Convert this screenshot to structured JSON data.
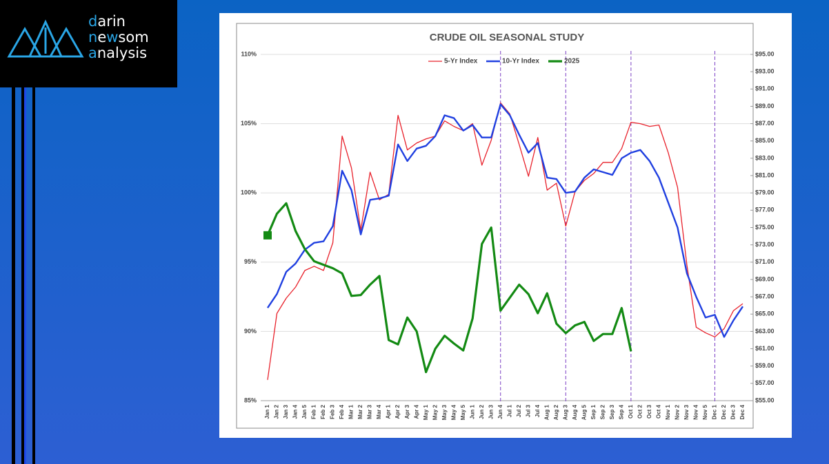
{
  "logo": {
    "lines": [
      [
        "d",
        "arin"
      ],
      [
        "n",
        "e",
        "w",
        "som"
      ],
      [
        "a",
        "nalysis"
      ]
    ]
  },
  "chart_data": {
    "type": "line",
    "title": "CRUDE OIL SEASONAL STUDY",
    "categories": [
      "Jan 1",
      "Jan 2",
      "Jan 3",
      "Jan 4",
      "Jan 5",
      "Feb 1",
      "Feb 2",
      "Feb 3",
      "Feb 4",
      "Mar 1",
      "Mar 2",
      "Mar 3",
      "Mar 4",
      "Apr 1",
      "Apr 2",
      "Apr 3",
      "Apr 4",
      "May 1",
      "May 2",
      "May 3",
      "May 4",
      "May 5",
      "Jun 1",
      "Jun 2",
      "Jun 3",
      "Jun 4",
      "Jul 1",
      "Jul 2",
      "Jul 3",
      "Jul 4",
      "Aug 1",
      "Aug 2",
      "Aug 3",
      "Aug 4",
      "Aug 5",
      "Sep 1",
      "Sep 2",
      "Sep 3",
      "Sep 4",
      "Oct 1",
      "Oct 2",
      "Oct 3",
      "Oct 4",
      "Nov 1",
      "Nov 2",
      "Nov 3",
      "Nov 4",
      "Nov 5",
      "Dec 1",
      "Dec 2",
      "Dec 3",
      "Dec 4"
    ],
    "series": [
      {
        "name": "5-Yr Index",
        "color": "#e8202a",
        "width": 1.3,
        "values": [
          86.5,
          91.3,
          92.4,
          93.2,
          94.4,
          94.7,
          94.4,
          96.4,
          104.1,
          101.8,
          97.3,
          101.5,
          99.5,
          99.9,
          105.6,
          103.1,
          103.6,
          103.9,
          104.1,
          105.2,
          104.8,
          104.5,
          105.0,
          102.0,
          103.8,
          106.5,
          105.7,
          103.5,
          101.2,
          104.0,
          100.2,
          100.7,
          97.6,
          100.1,
          100.9,
          101.4,
          102.2,
          102.2,
          103.2,
          105.1,
          105.0,
          104.8,
          104.9,
          102.9,
          100.4,
          94.8,
          90.3,
          89.9,
          89.6,
          90.2,
          91.5,
          92.0
        ]
      },
      {
        "name": "10-Yr Index",
        "color": "#1f3fe0",
        "width": 2.4,
        "values": [
          91.7,
          92.7,
          94.3,
          94.9,
          95.9,
          96.4,
          96.5,
          97.6,
          101.6,
          100.2,
          97.0,
          99.5,
          99.6,
          99.8,
          103.5,
          102.3,
          103.2,
          103.4,
          104.1,
          105.6,
          105.4,
          104.5,
          104.9,
          104.0,
          104.0,
          106.4,
          105.6,
          104.2,
          102.9,
          103.6,
          101.1,
          101.0,
          100.0,
          100.1,
          101.1,
          101.7,
          101.5,
          101.3,
          102.5,
          102.9,
          103.1,
          102.3,
          101.1,
          99.3,
          97.5,
          94.2,
          92.5,
          91.0,
          91.2,
          89.6,
          90.8,
          91.8
        ]
      },
      {
        "name": "2025",
        "color": "#138a13",
        "width": 3.2,
        "axis": "y2",
        "values": [
          74.1,
          76.6,
          77.8,
          74.6,
          72.5,
          71.1,
          70.7,
          70.3,
          69.7,
          67.1,
          67.2,
          68.4,
          69.4,
          62.0,
          61.5,
          64.6,
          63.0,
          58.3,
          61.0,
          62.5,
          61.6,
          60.8,
          64.5,
          73.1,
          75.0,
          65.4,
          66.9,
          68.4,
          67.3,
          65.1,
          67.4,
          63.9,
          62.8,
          63.7,
          64.1,
          61.9,
          62.7,
          62.7,
          65.7,
          60.7,
          null,
          null,
          null,
          null,
          null,
          null,
          null,
          null,
          null,
          null,
          null,
          null
        ]
      }
    ],
    "ylim": [
      85,
      110
    ],
    "yticks": [
      {
        "value": 85,
        "label": "85%"
      },
      {
        "value": 90,
        "label": "90%"
      },
      {
        "value": 95,
        "label": "95%"
      },
      {
        "value": 100,
        "label": "100%"
      },
      {
        "value": 105,
        "label": "105%"
      },
      {
        "value": 110,
        "label": "110%"
      }
    ],
    "y2lim": [
      55,
      95
    ],
    "y2ticks": [
      {
        "value": 55,
        "label": "$55.00"
      },
      {
        "value": 57,
        "label": "$57.00"
      },
      {
        "value": 59,
        "label": "$59.00"
      },
      {
        "value": 61,
        "label": "$61.00"
      },
      {
        "value": 63,
        "label": "$63.00"
      },
      {
        "value": 65,
        "label": "$65.00"
      },
      {
        "value": 67,
        "label": "$67.00"
      },
      {
        "value": 69,
        "label": "$69.00"
      },
      {
        "value": 71,
        "label": "$71.00"
      },
      {
        "value": 73,
        "label": "$73.00"
      },
      {
        "value": 75,
        "label": "$75.00"
      },
      {
        "value": 77,
        "label": "$77.00"
      },
      {
        "value": 79,
        "label": "$79.00"
      },
      {
        "value": 81,
        "label": "$81.00"
      },
      {
        "value": 83,
        "label": "$83.00"
      },
      {
        "value": 85,
        "label": "$85.00"
      },
      {
        "value": 87,
        "label": "$87.00"
      },
      {
        "value": 89,
        "label": "$89.00"
      },
      {
        "value": 91,
        "label": "$91.00"
      },
      {
        "value": 93,
        "label": "$93.00"
      },
      {
        "value": 95,
        "label": "$95.00"
      }
    ],
    "grid": true,
    "legend": "top",
    "dashed_lines_at": [
      "Jun 4",
      "Aug 3",
      "Oct 1",
      "Dec 1"
    ]
  }
}
